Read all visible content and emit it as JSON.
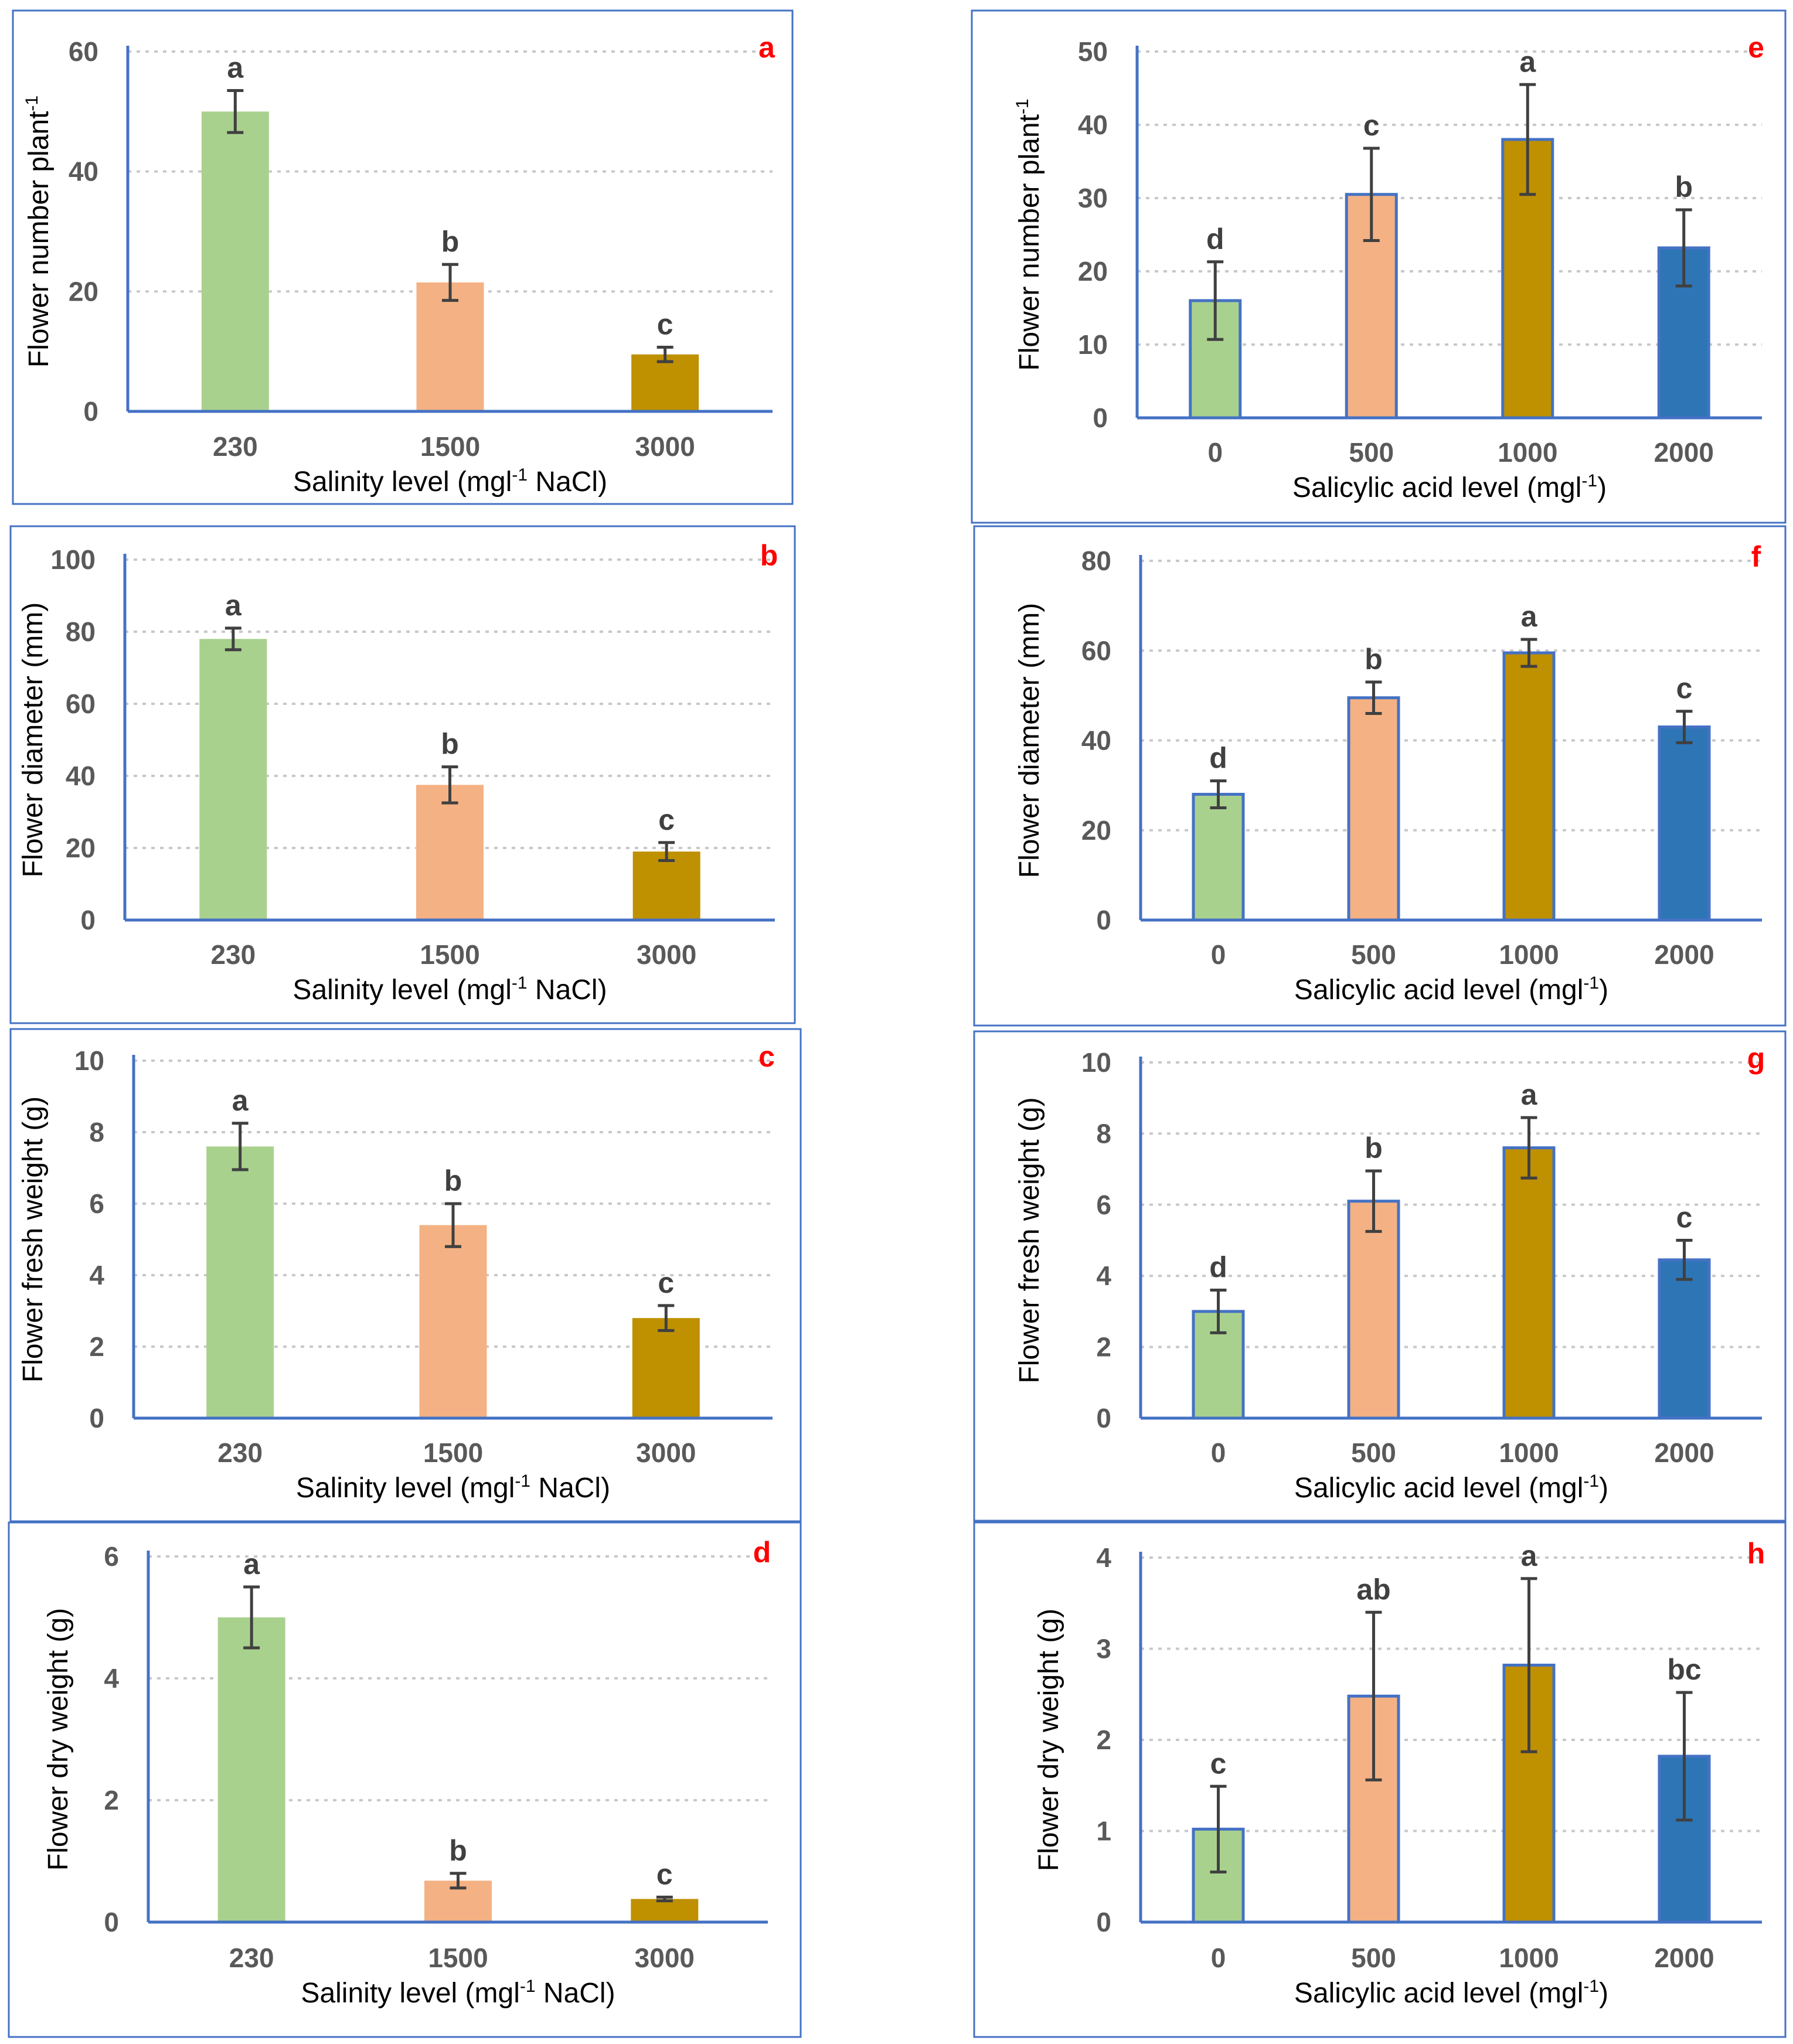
{
  "figure_title": "",
  "colors": {
    "green": "#a9d18e",
    "salmon": "#f4b183",
    "olive": "#bf9000",
    "blue": "#2e75b6",
    "frame": "#4472c4",
    "panel_letter": "#ff0000"
  },
  "chart_data": [
    {
      "panel": "a",
      "type": "bar",
      "ylabel": "Flower number plant",
      "ylabel_sup": "-1",
      "xlabel": "Salinity level (mgl",
      "xlabel_sup": "-1",
      "xlabel_suffix": " NaCl)",
      "categories": [
        "230",
        "1500",
        "3000"
      ],
      "values": [
        50,
        21.5,
        9.5
      ],
      "errors": [
        3.5,
        3,
        1.2
      ],
      "letters": [
        "a",
        "b",
        "c"
      ],
      "colors": [
        "#a9d18e",
        "#f4b183",
        "#bf9000"
      ],
      "ylim": [
        0,
        60
      ],
      "yticks": [
        0,
        20,
        40,
        60
      ],
      "bordered": false
    },
    {
      "panel": "b",
      "type": "bar",
      "ylabel": "Flower diameter (mm)",
      "ylabel_sup": "",
      "xlabel": "Salinity level (mgl",
      "xlabel_sup": "-1",
      "xlabel_suffix": " NaCl)",
      "categories": [
        "230",
        "1500",
        "3000"
      ],
      "values": [
        78,
        37.5,
        19
      ],
      "errors": [
        3,
        5,
        2.5
      ],
      "letters": [
        "a",
        "b",
        "c"
      ],
      "colors": [
        "#a9d18e",
        "#f4b183",
        "#bf9000"
      ],
      "ylim": [
        0,
        100
      ],
      "yticks": [
        0,
        20,
        40,
        60,
        80,
        100
      ],
      "bordered": false
    },
    {
      "panel": "c",
      "type": "bar",
      "ylabel": "Flower fresh weight (g)",
      "ylabel_sup": "",
      "xlabel": "Salinity level (mgl",
      "xlabel_sup": "-1",
      "xlabel_suffix": " NaCl)",
      "categories": [
        "230",
        "1500",
        "3000"
      ],
      "values": [
        7.6,
        5.4,
        2.8
      ],
      "errors": [
        0.65,
        0.6,
        0.35
      ],
      "letters": [
        "a",
        "b",
        "c"
      ],
      "colors": [
        "#a9d18e",
        "#f4b183",
        "#bf9000"
      ],
      "ylim": [
        0,
        10
      ],
      "yticks": [
        0,
        2,
        4,
        6,
        8,
        10
      ],
      "bordered": false
    },
    {
      "panel": "d",
      "type": "bar",
      "ylabel": "Flower dry weight (g)",
      "ylabel_sup": "",
      "xlabel": "Salinity level (mgl",
      "xlabel_sup": "-1",
      "xlabel_suffix": " NaCl)",
      "categories": [
        "230",
        "1500",
        "3000"
      ],
      "values": [
        5.0,
        0.68,
        0.38
      ],
      "errors": [
        0.5,
        0.12,
        0.03
      ],
      "letters": [
        "a",
        "b",
        "c"
      ],
      "colors": [
        "#a9d18e",
        "#f4b183",
        "#bf9000"
      ],
      "ylim": [
        0,
        6
      ],
      "yticks": [
        0,
        2,
        4,
        6
      ],
      "bordered": false
    },
    {
      "panel": "e",
      "type": "bar",
      "ylabel": "Flower number plant",
      "ylabel_sup": "-1",
      "xlabel": "Salicylic acid level (mgl",
      "xlabel_sup": "-1",
      "xlabel_suffix": ")",
      "categories": [
        "0",
        "500",
        "1000",
        "2000"
      ],
      "values": [
        16,
        30.5,
        38,
        23.2
      ],
      "errors": [
        5.3,
        6.3,
        7.5,
        5.2
      ],
      "letters": [
        "d",
        "c",
        "a",
        "b"
      ],
      "colors": [
        "#a9d18e",
        "#f4b183",
        "#bf9000",
        "#2e75b6"
      ],
      "ylim": [
        0,
        50
      ],
      "yticks": [
        0,
        10,
        20,
        30,
        40,
        50
      ],
      "bordered": true
    },
    {
      "panel": "f",
      "type": "bar",
      "ylabel": "Flower diameter (mm)",
      "ylabel_sup": "",
      "xlabel": "Salicylic acid level (mgl",
      "xlabel_sup": "-1",
      "xlabel_suffix": ")",
      "categories": [
        "0",
        "500",
        "1000",
        "2000"
      ],
      "values": [
        28,
        49.5,
        59.5,
        43
      ],
      "errors": [
        3,
        3.5,
        3,
        3.5
      ],
      "letters": [
        "d",
        "b",
        "a",
        "c"
      ],
      "colors": [
        "#a9d18e",
        "#f4b183",
        "#bf9000",
        "#2e75b6"
      ],
      "ylim": [
        0,
        80
      ],
      "yticks": [
        0,
        20,
        40,
        60,
        80
      ],
      "bordered": true
    },
    {
      "panel": "g",
      "type": "bar",
      "ylabel": "Flower fresh weight (g)",
      "ylabel_sup": "",
      "xlabel": "Salicylic acid level (mgl",
      "xlabel_sup": "-1",
      "xlabel_suffix": ")",
      "categories": [
        "0",
        "500",
        "1000",
        "2000"
      ],
      "values": [
        3.0,
        6.1,
        7.6,
        4.45
      ],
      "errors": [
        0.6,
        0.85,
        0.85,
        0.55
      ],
      "letters": [
        "d",
        "b",
        "a",
        "c"
      ],
      "colors": [
        "#a9d18e",
        "#f4b183",
        "#bf9000",
        "#2e75b6"
      ],
      "ylim": [
        0,
        10
      ],
      "yticks": [
        0,
        2,
        4,
        6,
        8,
        10
      ],
      "bordered": true
    },
    {
      "panel": "h",
      "type": "bar",
      "ylabel": "Flower dry weight (g)",
      "ylabel_sup": "",
      "xlabel": "Salicylic acid level (mgl",
      "xlabel_sup": "-1",
      "xlabel_suffix": ")",
      "categories": [
        "0",
        "500",
        "1000",
        "2000"
      ],
      "values": [
        1.02,
        2.48,
        2.82,
        1.82
      ],
      "errors": [
        0.47,
        0.92,
        0.95,
        0.7
      ],
      "letters": [
        "c",
        "ab",
        "a",
        "bc"
      ],
      "colors": [
        "#a9d18e",
        "#f4b183",
        "#bf9000",
        "#2e75b6"
      ],
      "ylim": [
        0,
        4
      ],
      "yticks": [
        0,
        1,
        2,
        3,
        4
      ],
      "bordered": true
    }
  ]
}
